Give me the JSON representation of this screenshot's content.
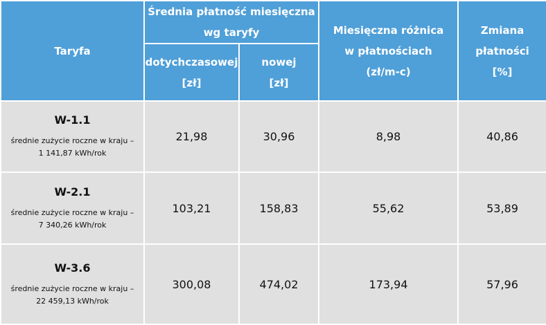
{
  "header": {
    "tariff": "Taryfa",
    "avg_payment": [
      "Średnia płatność miesięczna",
      "wg taryfy"
    ],
    "previous": [
      "dotychczasowej",
      "[zł]"
    ],
    "new": [
      "nowej",
      "[zł]"
    ],
    "difference": [
      "Miesięczna różnica",
      "w płatnościach",
      "(zł/m-c)"
    ],
    "change": [
      "Zmiana",
      "płatności",
      "[%]"
    ]
  },
  "rows": [
    {
      "tariff": "W-1.1",
      "note": [
        "średnie zużycie roczne w kraju –",
        "1 141,87 kWh/rok"
      ],
      "previous": "21,98",
      "new": "30,96",
      "difference": "8,98",
      "change": "40,86"
    },
    {
      "tariff": "W-2.1",
      "note": [
        "średnie zużycie roczne w kraju –",
        "7 340,26 kWh/rok"
      ],
      "previous": "103,21",
      "new": "158,83",
      "difference": "55,62",
      "change": "53,89"
    },
    {
      "tariff": "W-3.6",
      "note": [
        "średnie zużycie roczne w kraju –",
        "22 459,13 kWh/rok"
      ],
      "previous": "300,08",
      "new": "474,02",
      "difference": "173,94",
      "change": "57,96"
    }
  ]
}
